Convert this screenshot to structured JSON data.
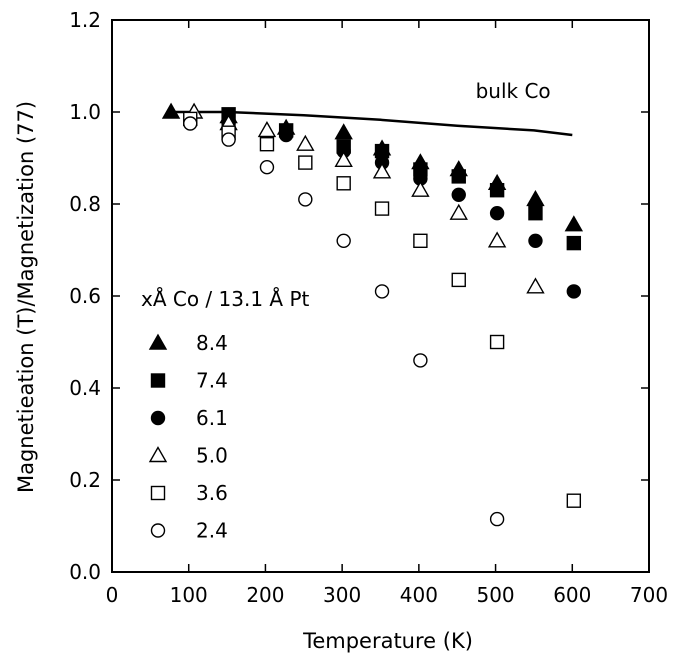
{
  "chart_data": {
    "type": "scatter",
    "xlabel": "Temperature (K)",
    "ylabel": "Magnetieation (T)/Magnetization (77)",
    "xlim": [
      0,
      700
    ],
    "ylim": [
      0,
      1.2
    ],
    "x_ticks": [
      "0",
      "100",
      "200",
      "300",
      "400",
      "500",
      "600",
      "700"
    ],
    "y_ticks": [
      "0.0",
      "0.2",
      "0.4",
      "0.6",
      "0.8",
      "1.0",
      "1.2"
    ],
    "grid": false,
    "legend": {
      "title": "xÅ Co / 13.1 Å Pt",
      "placement": "left"
    },
    "series": [
      {
        "name": "8.4",
        "marker": "triangle-filled",
        "points": [
          [
            77,
            1.0
          ],
          [
            152,
            0.99
          ],
          [
            227,
            0.965
          ],
          [
            302,
            0.955
          ],
          [
            352,
            0.92
          ],
          [
            402,
            0.89
          ],
          [
            452,
            0.875
          ],
          [
            502,
            0.845
          ],
          [
            552,
            0.81
          ],
          [
            602,
            0.755
          ]
        ]
      },
      {
        "name": "7.4",
        "marker": "square-filled",
        "points": [
          [
            152,
            0.995
          ],
          [
            227,
            0.96
          ],
          [
            302,
            0.925
          ],
          [
            352,
            0.915
          ],
          [
            402,
            0.875
          ],
          [
            452,
            0.86
          ],
          [
            502,
            0.83
          ],
          [
            552,
            0.78
          ],
          [
            602,
            0.715
          ]
        ]
      },
      {
        "name": "6.1",
        "marker": "circle-filled",
        "points": [
          [
            152,
            0.975
          ],
          [
            227,
            0.95
          ],
          [
            302,
            0.915
          ],
          [
            352,
            0.89
          ],
          [
            402,
            0.855
          ],
          [
            452,
            0.82
          ],
          [
            502,
            0.78
          ],
          [
            552,
            0.72
          ],
          [
            602,
            0.61
          ]
        ]
      },
      {
        "name": "5.0",
        "marker": "triangle-open",
        "points": [
          [
            107,
            1.0
          ],
          [
            152,
            0.975
          ],
          [
            202,
            0.96
          ],
          [
            252,
            0.93
          ],
          [
            302,
            0.895
          ],
          [
            352,
            0.87
          ],
          [
            402,
            0.83
          ],
          [
            452,
            0.78
          ],
          [
            502,
            0.72
          ],
          [
            552,
            0.62
          ]
        ]
      },
      {
        "name": "3.6",
        "marker": "square-open",
        "points": [
          [
            102,
            0.985
          ],
          [
            152,
            0.955
          ],
          [
            202,
            0.93
          ],
          [
            252,
            0.89
          ],
          [
            302,
            0.845
          ],
          [
            352,
            0.79
          ],
          [
            402,
            0.72
          ],
          [
            452,
            0.635
          ],
          [
            502,
            0.5
          ],
          [
            602,
            0.155
          ]
        ]
      },
      {
        "name": "2.4",
        "marker": "circle-open",
        "points": [
          [
            102,
            0.975
          ],
          [
            152,
            0.94
          ],
          [
            202,
            0.88
          ],
          [
            252,
            0.81
          ],
          [
            302,
            0.72
          ],
          [
            352,
            0.61
          ],
          [
            402,
            0.46
          ],
          [
            502,
            0.115
          ]
        ]
      }
    ],
    "lines": [
      {
        "name": "bulk Co",
        "points": [
          [
            77,
            1.0
          ],
          [
            150,
            1.0
          ],
          [
            250,
            0.993
          ],
          [
            350,
            0.983
          ],
          [
            450,
            0.97
          ],
          [
            550,
            0.96
          ],
          [
            600,
            0.95
          ]
        ]
      }
    ],
    "annotations": [
      {
        "text": "bulk Co",
        "x": 530,
        "y": 1.0
      }
    ]
  }
}
